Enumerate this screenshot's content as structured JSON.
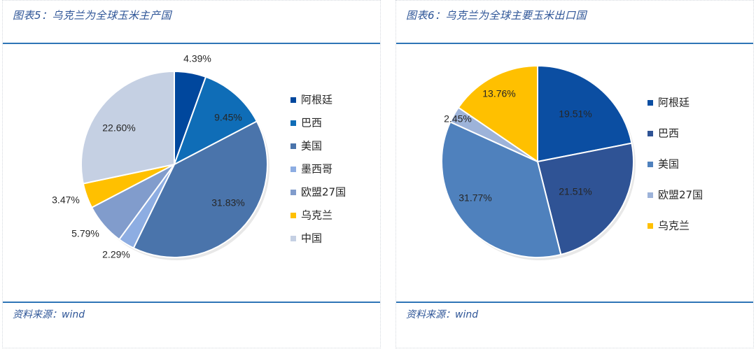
{
  "figures": [
    {
      "title": "图表5：乌克兰为全球玉米主产国",
      "source": "资料来源：wind"
    },
    {
      "title": "图表6：乌克兰为全球主要玉米出口国",
      "source": "资料来源：wind"
    }
  ],
  "chart_data": [
    {
      "type": "pie",
      "title": "",
      "slices": [
        {
          "label": "阿根廷",
          "value": 4.39,
          "display": "4.39%",
          "color": "#00479d"
        },
        {
          "label": "巴西",
          "value": 9.45,
          "display": "9.45%",
          "color": "#0f6db7"
        },
        {
          "label": "美国",
          "value": 31.83,
          "display": "31.83%",
          "color": "#4a74ab"
        },
        {
          "label": "墨西哥",
          "value": 2.29,
          "display": "2.29%",
          "color": "#8dade2"
        },
        {
          "label": "欧盟27国",
          "value": 5.79,
          "display": "5.79%",
          "color": "#819ccc"
        },
        {
          "label": "乌克兰",
          "value": 3.47,
          "display": "3.47%",
          "color": "#ffc000"
        },
        {
          "label": "中国",
          "value": 22.6,
          "display": "22.60%",
          "color": "#c5d0e3"
        }
      ],
      "start_angle_deg": 0,
      "direction": "clockwise",
      "legend_position": "right"
    },
    {
      "type": "pie",
      "title": "",
      "slices": [
        {
          "label": "阿根廷",
          "value": 19.51,
          "display": "19.51%",
          "color": "#0b4ea2"
        },
        {
          "label": "巴西",
          "value": 21.51,
          "display": "21.51%",
          "color": "#2f5395"
        },
        {
          "label": "美国",
          "value": 31.77,
          "display": "31.77%",
          "color": "#4f81bd"
        },
        {
          "label": "欧盟27国",
          "value": 2.45,
          "display": "2.45%",
          "color": "#9db3d9"
        },
        {
          "label": "乌克兰",
          "value": 13.76,
          "display": "13.76%",
          "color": "#ffc000"
        }
      ],
      "start_angle_deg": 0,
      "direction": "clockwise",
      "legend_position": "right"
    }
  ]
}
